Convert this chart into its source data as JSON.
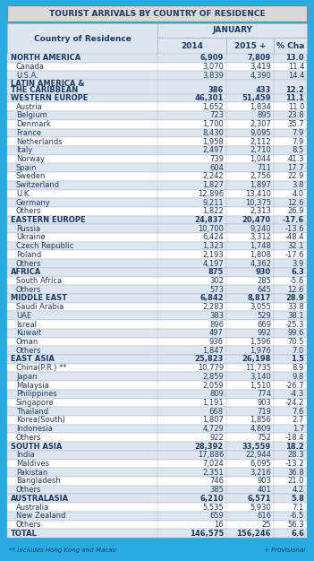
{
  "title": "TOURIST ARRIVALS BY COUNTRY OF RESIDENCE",
  "col_headers": [
    "Country of Residence",
    "2014",
    "2015 +",
    "% Cha"
  ],
  "subheader": "JANUARY",
  "footnote1": "** Includes Hong Kong and Macau",
  "footnote2": "+ Provisional",
  "rows": [
    {
      "label": "NORTH AMERICA",
      "v2014": "6,909",
      "v2015": "7,809",
      "pct": "13.0",
      "bold": true,
      "group": true
    },
    {
      "label": "Canada",
      "v2014": "3,070",
      "v2015": "3,419",
      "pct": "11.4",
      "bold": false,
      "group": false
    },
    {
      "label": "U.S.A.",
      "v2014": "3,839",
      "v2015": "4,390",
      "pct": "14.4",
      "bold": false,
      "group": false
    },
    {
      "label": "LATIN AMERICA &\nTHE CARIBBEAN",
      "v2014": "386",
      "v2015": "433",
      "pct": "12.2",
      "bold": true,
      "group": true,
      "two_line": true
    },
    {
      "label": "WESTERN EUROPE",
      "v2014": "46,301",
      "v2015": "51,459",
      "pct": "11.1",
      "bold": true,
      "group": true
    },
    {
      "label": "Austria",
      "v2014": "1,652",
      "v2015": "1,834",
      "pct": "11.0",
      "bold": false,
      "group": false
    },
    {
      "label": "Belgium",
      "v2014": "723",
      "v2015": "895",
      "pct": "23.8",
      "bold": false,
      "group": false
    },
    {
      "label": "Denmark",
      "v2014": "1,700",
      "v2015": "2,307",
      "pct": "35.7",
      "bold": false,
      "group": false
    },
    {
      "label": "France",
      "v2014": "8,430",
      "v2015": "9,095",
      "pct": "7.9",
      "bold": false,
      "group": false
    },
    {
      "label": "Netherlands",
      "v2014": "1,958",
      "v2015": "2,112",
      "pct": "7.9",
      "bold": false,
      "group": false
    },
    {
      "label": "Italy",
      "v2014": "2,497",
      "v2015": "2,710",
      "pct": "8.5",
      "bold": false,
      "group": false
    },
    {
      "label": "Norway",
      "v2014": "739",
      "v2015": "1,044",
      "pct": "41.3",
      "bold": false,
      "group": false
    },
    {
      "label": "Spain",
      "v2014": "604",
      "v2015": "711",
      "pct": "17.7",
      "bold": false,
      "group": false
    },
    {
      "label": "Sweden",
      "v2014": "2,242",
      "v2015": "2,756",
      "pct": "22.9",
      "bold": false,
      "group": false
    },
    {
      "label": "Switzerland",
      "v2014": "1,827",
      "v2015": "1,897",
      "pct": "3.8",
      "bold": false,
      "group": false
    },
    {
      "label": "U.K.",
      "v2014": "12,896",
      "v2015": "13,410",
      "pct": "4.0",
      "bold": false,
      "group": false
    },
    {
      "label": "Germany",
      "v2014": "9,211",
      "v2015": "10,375",
      "pct": "12.6",
      "bold": false,
      "group": false
    },
    {
      "label": "Others",
      "v2014": "1,822",
      "v2015": "2,313",
      "pct": "26.9",
      "bold": false,
      "group": false
    },
    {
      "label": "EASTERN EUROPE",
      "v2014": "24,837",
      "v2015": "20,470",
      "pct": "-17.6",
      "bold": true,
      "group": true
    },
    {
      "label": "Russia",
      "v2014": "10,700",
      "v2015": "9,240",
      "pct": "-13.6",
      "bold": false,
      "group": false
    },
    {
      "label": "Ukraine",
      "v2014": "6,424",
      "v2015": "3,312",
      "pct": "-48.4",
      "bold": false,
      "group": false
    },
    {
      "label": "Czech Republic",
      "v2014": "1,323",
      "v2015": "1,748",
      "pct": "32.1",
      "bold": false,
      "group": false
    },
    {
      "label": "Poland",
      "v2014": "2,193",
      "v2015": "1,808",
      "pct": "-17.6",
      "bold": false,
      "group": false
    },
    {
      "label": "Others",
      "v2014": "4,197",
      "v2015": "4,362",
      "pct": "3.9",
      "bold": false,
      "group": false
    },
    {
      "label": "AFRICA",
      "v2014": "875",
      "v2015": "930",
      "pct": "6.3",
      "bold": true,
      "group": true
    },
    {
      "label": "South Africa",
      "v2014": "302",
      "v2015": "285",
      "pct": "-5.6",
      "bold": false,
      "group": false
    },
    {
      "label": "Others",
      "v2014": "573",
      "v2015": "645",
      "pct": "12.6",
      "bold": false,
      "group": false
    },
    {
      "label": "MIDDLE EAST",
      "v2014": "6,842",
      "v2015": "8,817",
      "pct": "28.9",
      "bold": true,
      "group": true
    },
    {
      "label": "Saudi Arabia",
      "v2014": "2,283",
      "v2015": "3,055",
      "pct": "33.8",
      "bold": false,
      "group": false
    },
    {
      "label": "UAE",
      "v2014": "383",
      "v2015": "529",
      "pct": "38.1",
      "bold": false,
      "group": false
    },
    {
      "label": "Isreal",
      "v2014": "896",
      "v2015": "669",
      "pct": "-25.3",
      "bold": false,
      "group": false
    },
    {
      "label": "Kuwait",
      "v2014": "497",
      "v2015": "992",
      "pct": "99.6",
      "bold": false,
      "group": false
    },
    {
      "label": "Oman",
      "v2014": "936",
      "v2015": "1,596",
      "pct": "70.5",
      "bold": false,
      "group": false
    },
    {
      "label": "Others",
      "v2014": "1,847",
      "v2015": "1,976",
      "pct": "7.0",
      "bold": false,
      "group": false
    },
    {
      "label": "EAST ASIA",
      "v2014": "25,823",
      "v2015": "26,198",
      "pct": "1.5",
      "bold": true,
      "group": true
    },
    {
      "label": "China(P.R.) **",
      "v2014": "10,779",
      "v2015": "11,735",
      "pct": "8.9",
      "bold": false,
      "group": false
    },
    {
      "label": "Japan",
      "v2014": "2,859",
      "v2015": "3,140",
      "pct": "9.8",
      "bold": false,
      "group": false
    },
    {
      "label": "Malaysia",
      "v2014": "2,059",
      "v2015": "1,510",
      "pct": "-26.7",
      "bold": false,
      "group": false
    },
    {
      "label": "Philippines",
      "v2014": "809",
      "v2015": "774",
      "pct": "-4.3",
      "bold": false,
      "group": false
    },
    {
      "label": "Singapore",
      "v2014": "1,191",
      "v2015": "903",
      "pct": "-24.2",
      "bold": false,
      "group": false
    },
    {
      "label": "Thailand",
      "v2014": "668",
      "v2015": "719",
      "pct": "7.6",
      "bold": false,
      "group": false
    },
    {
      "label": "Korea(South)",
      "v2014": "1,807",
      "v2015": "1,856",
      "pct": "2.7",
      "bold": false,
      "group": false
    },
    {
      "label": "Indonesia",
      "v2014": "4,729",
      "v2015": "4,809",
      "pct": "1.7",
      "bold": false,
      "group": false
    },
    {
      "label": "Others",
      "v2014": "922",
      "v2015": "752",
      "pct": "-18.4",
      "bold": false,
      "group": false
    },
    {
      "label": "SOUTH ASIA",
      "v2014": "28,392",
      "v2015": "33,559",
      "pct": "18.2",
      "bold": true,
      "group": true
    },
    {
      "label": "India",
      "v2014": "17,886",
      "v2015": "22,944",
      "pct": "28.3",
      "bold": false,
      "group": false
    },
    {
      "label": "Maldives",
      "v2014": "7,024",
      "v2015": "6,095",
      "pct": "-13.2",
      "bold": false,
      "group": false
    },
    {
      "label": "Pakistan",
      "v2014": "2,351",
      "v2015": "3,216",
      "pct": "36.8",
      "bold": false,
      "group": false
    },
    {
      "label": "Bangladesh",
      "v2014": "746",
      "v2015": "903",
      "pct": "21.0",
      "bold": false,
      "group": false
    },
    {
      "label": "Others",
      "v2014": "385",
      "v2015": "401",
      "pct": "4.2",
      "bold": false,
      "group": false
    },
    {
      "label": "AUSTRALASIA",
      "v2014": "6,210",
      "v2015": "6,571",
      "pct": "5.8",
      "bold": true,
      "group": true
    },
    {
      "label": "Australia",
      "v2014": "5,535",
      "v2015": "5,930",
      "pct": "7.1",
      "bold": false,
      "group": false
    },
    {
      "label": "New Zealand",
      "v2014": "659",
      "v2015": "616",
      "pct": "-6.5",
      "bold": false,
      "group": false
    },
    {
      "label": "Others",
      "v2014": "16",
      "v2015": "25",
      "pct": "56.3",
      "bold": false,
      "group": false
    },
    {
      "label": "TOTAL",
      "v2014": "146,575",
      "v2015": "156,246",
      "pct": "6.6",
      "bold": true,
      "group": true
    }
  ],
  "bg_color": "#29aae1",
  "header_bg": "#dce6f1",
  "group_bg": "#dce6f1",
  "row_white": "#ffffff",
  "row_blue": "#dce6f1",
  "header_text_color": "#1f3864",
  "group_text_color": "#1f3864",
  "row_text_color": "#1f3864",
  "title_bg": "#d9d9d9",
  "title_text_color": "#1f3864",
  "border_color": "#a0a0a0",
  "grid_color": "#b0b0b0"
}
